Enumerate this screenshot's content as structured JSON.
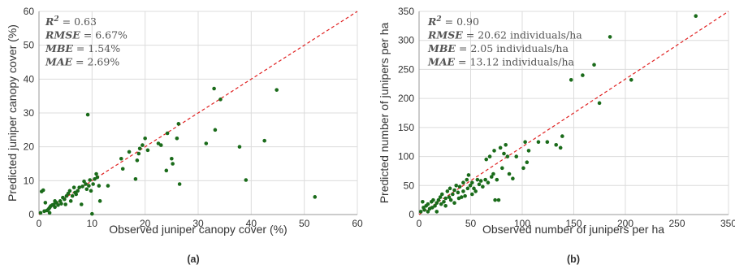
{
  "chart_data": [
    {
      "type": "scatter",
      "panel": "(a)",
      "xlabel": "Observed juniper canopy cover (%)",
      "ylabel": "Predicted juniper canopy cover (%)",
      "xlim": [
        0,
        60
      ],
      "ylim": [
        0,
        60
      ],
      "xticks": [
        "0",
        "10",
        "20",
        "30",
        "40",
        "50",
        "60"
      ],
      "yticks": [
        "0",
        "10",
        "20",
        "30",
        "40",
        "50",
        "60"
      ],
      "grid": true,
      "reference_line": "1:1 dashed red",
      "stats": [
        {
          "name": "R",
          "sup": "2",
          "value": "0.63"
        },
        {
          "name": "RMSE",
          "sup": "",
          "value": "6.67%"
        },
        {
          "name": "MBE",
          "sup": "",
          "value": "1.54%"
        },
        {
          "name": "MAE",
          "sup": "",
          "value": "2.69%"
        }
      ],
      "marker_color": "#1a6b1a",
      "line_color": "#e02020",
      "points": [
        [
          0.3,
          0.5
        ],
        [
          0.5,
          6.8
        ],
        [
          0.8,
          7.2
        ],
        [
          1.0,
          1.0
        ],
        [
          1.2,
          3.5
        ],
        [
          1.5,
          1.2
        ],
        [
          1.8,
          1.6
        ],
        [
          2.0,
          2.0
        ],
        [
          2.2,
          2.5
        ],
        [
          2.5,
          2.8
        ],
        [
          2.8,
          3.0
        ],
        [
          3.0,
          2.2
        ],
        [
          3.0,
          4.0
        ],
        [
          3.3,
          3.5
        ],
        [
          3.6,
          2.8
        ],
        [
          4.0,
          4.0
        ],
        [
          4.2,
          3.2
        ],
        [
          4.5,
          5.0
        ],
        [
          4.8,
          4.5
        ],
        [
          5.0,
          3.0
        ],
        [
          5.2,
          5.5
        ],
        [
          5.5,
          6.2
        ],
        [
          5.8,
          7.0
        ],
        [
          6.0,
          4.0
        ],
        [
          6.3,
          5.5
        ],
        [
          6.6,
          8.0
        ],
        [
          7.0,
          6.0
        ],
        [
          7.3,
          7.0
        ],
        [
          7.6,
          8.0
        ],
        [
          8.0,
          3.0
        ],
        [
          8.2,
          8.3
        ],
        [
          8.5,
          9.8
        ],
        [
          8.8,
          9.0
        ],
        [
          9.0,
          7.5
        ],
        [
          9.2,
          29.5
        ],
        [
          9.4,
          8.5
        ],
        [
          9.6,
          10.2
        ],
        [
          9.8,
          7.0
        ],
        [
          10.0,
          0.2
        ],
        [
          10.2,
          9.0
        ],
        [
          10.5,
          10.5
        ],
        [
          10.8,
          12.0
        ],
        [
          11.0,
          11.0
        ],
        [
          11.3,
          8.5
        ],
        [
          11.5,
          4.0
        ],
        [
          13.0,
          8.5
        ],
        [
          15.5,
          16.5
        ],
        [
          15.8,
          13.5
        ],
        [
          17.0,
          18.5
        ],
        [
          18.2,
          10.5
        ],
        [
          18.5,
          16.0
        ],
        [
          18.8,
          18.0
        ],
        [
          19.0,
          19.5
        ],
        [
          19.5,
          20.5
        ],
        [
          20.0,
          22.5
        ],
        [
          20.5,
          19.0
        ],
        [
          22.5,
          21.0
        ],
        [
          23.0,
          20.5
        ],
        [
          24.2,
          24.0
        ],
        [
          25.0,
          16.5
        ],
        [
          25.2,
          15.0
        ],
        [
          26.0,
          22.5
        ],
        [
          26.3,
          26.8
        ],
        [
          26.5,
          9.0
        ],
        [
          31.5,
          21.0
        ],
        [
          33.0,
          37.2
        ],
        [
          33.2,
          25.0
        ],
        [
          34.2,
          34.0
        ],
        [
          37.8,
          20.0
        ],
        [
          39.0,
          10.2
        ],
        [
          42.5,
          21.8
        ],
        [
          44.8,
          36.8
        ],
        [
          52.0,
          5.2
        ],
        [
          24.0,
          13.0
        ],
        [
          2.0,
          0.5
        ],
        [
          6.8,
          6.5
        ]
      ]
    },
    {
      "type": "scatter",
      "panel": "(b)",
      "xlabel": "Observed number of junipers per ha",
      "ylabel": "Predicted number of junipers per ha",
      "xlim": [
        0,
        350
      ],
      "ylim": [
        0,
        350
      ],
      "xticks": [
        "0",
        "50",
        "100",
        "150",
        "200",
        "250",
        "350"
      ],
      "yticks": [
        "0",
        "50",
        "100",
        "150",
        "200",
        "250",
        "300",
        "350"
      ],
      "grid": true,
      "reference_line": "1:1 dashed red",
      "stats": [
        {
          "name": "R",
          "sup": "2",
          "value": "0.90"
        },
        {
          "name": "RMSE",
          "sup": "",
          "value": "20.62 individuals/ha"
        },
        {
          "name": "MBE",
          "sup": "",
          "value": "2.05 individuals/ha"
        },
        {
          "name": "MAE",
          "sup": "",
          "value": "13.12 individuals/ha"
        }
      ],
      "marker_color": "#1a6b1a",
      "line_color": "#e02020",
      "points": [
        [
          2,
          5
        ],
        [
          4,
          22
        ],
        [
          5,
          12
        ],
        [
          6,
          8
        ],
        [
          8,
          15
        ],
        [
          10,
          18
        ],
        [
          10,
          5
        ],
        [
          12,
          10
        ],
        [
          14,
          22
        ],
        [
          15,
          12
        ],
        [
          16,
          25
        ],
        [
          18,
          15
        ],
        [
          20,
          20
        ],
        [
          20,
          5
        ],
        [
          22,
          25
        ],
        [
          24,
          30
        ],
        [
          25,
          18
        ],
        [
          26,
          35
        ],
        [
          28,
          22
        ],
        [
          30,
          28
        ],
        [
          30,
          15
        ],
        [
          32,
          40
        ],
        [
          34,
          30
        ],
        [
          35,
          45
        ],
        [
          36,
          25
        ],
        [
          38,
          35
        ],
        [
          40,
          42
        ],
        [
          40,
          20
        ],
        [
          42,
          50
        ],
        [
          44,
          38
        ],
        [
          45,
          28
        ],
        [
          46,
          48
        ],
        [
          48,
          30
        ],
        [
          50,
          55
        ],
        [
          50,
          40
        ],
        [
          52,
          32
        ],
        [
          54,
          60
        ],
        [
          55,
          45
        ],
        [
          56,
          68
        ],
        [
          58,
          50
        ],
        [
          60,
          55
        ],
        [
          60,
          35
        ],
        [
          62,
          45
        ],
        [
          64,
          40
        ],
        [
          66,
          60
        ],
        [
          68,
          52
        ],
        [
          70,
          58
        ],
        [
          72,
          48
        ],
        [
          75,
          60
        ],
        [
          76,
          95
        ],
        [
          78,
          55
        ],
        [
          80,
          100
        ],
        [
          82,
          65
        ],
        [
          84,
          70
        ],
        [
          85,
          110
        ],
        [
          86,
          25
        ],
        [
          88,
          60
        ],
        [
          90,
          25
        ],
        [
          92,
          115
        ],
        [
          94,
          80
        ],
        [
          96,
          105
        ],
        [
          98,
          120
        ],
        [
          100,
          100
        ],
        [
          102,
          70
        ],
        [
          106,
          62
        ],
        [
          110,
          100
        ],
        [
          118,
          80
        ],
        [
          120,
          125
        ],
        [
          122,
          90
        ],
        [
          124,
          110
        ],
        [
          135,
          125
        ],
        [
          145,
          125
        ],
        [
          155,
          120
        ],
        [
          160,
          115
        ],
        [
          162,
          135
        ],
        [
          172,
          232
        ],
        [
          185,
          240
        ],
        [
          198,
          258
        ],
        [
          204,
          192
        ],
        [
          216,
          306
        ],
        [
          240,
          232
        ],
        [
          313,
          342
        ]
      ]
    }
  ]
}
